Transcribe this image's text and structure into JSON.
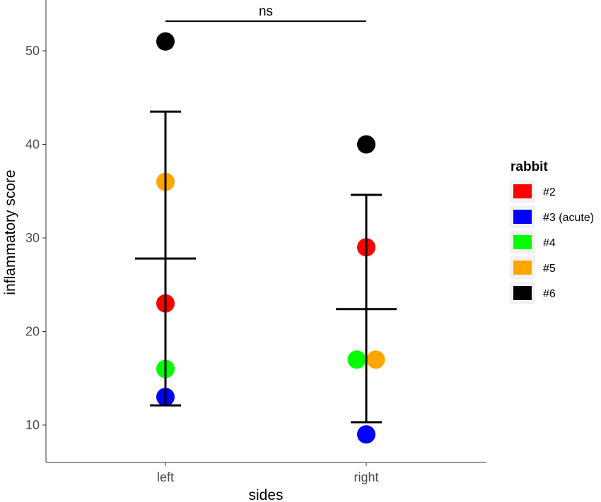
{
  "chart_data": {
    "type": "scatter",
    "xlabel": "sides",
    "ylabel": "inflammatory score",
    "categories": [
      "left",
      "right"
    ],
    "ylim": [
      7.5,
      53.5
    ],
    "yticks": [
      10,
      20,
      30,
      40,
      50
    ],
    "grid": false,
    "legend": {
      "title": "rabbit",
      "placement": "right",
      "entries": [
        {
          "label": "#2",
          "color": "#ff0000"
        },
        {
          "label": "#3 (acute)",
          "color": "#0000ff"
        },
        {
          "label": "#4",
          "color": "#00ff00"
        },
        {
          "label": "#5",
          "color": "#ffa500"
        },
        {
          "label": "#6",
          "color": "#000000"
        }
      ]
    },
    "points": [
      {
        "side": "left",
        "rabbit": "#6",
        "value": 51
      },
      {
        "side": "left",
        "rabbit": "#5",
        "value": 36
      },
      {
        "side": "left",
        "rabbit": "#2",
        "value": 23
      },
      {
        "side": "left",
        "rabbit": "#4",
        "value": 16
      },
      {
        "side": "left",
        "rabbit": "#3 (acute)",
        "value": 13
      },
      {
        "side": "right",
        "rabbit": "#6",
        "value": 40
      },
      {
        "side": "right",
        "rabbit": "#2",
        "value": 29
      },
      {
        "side": "right",
        "rabbit": "#4",
        "value": 17
      },
      {
        "side": "right",
        "rabbit": "#5",
        "value": 17
      },
      {
        "side": "right",
        "rabbit": "#3 (acute)",
        "value": 9
      }
    ],
    "summary": [
      {
        "side": "left",
        "mean": 27.8,
        "lower": 12.1,
        "upper": 43.5
      },
      {
        "side": "right",
        "mean": 22.4,
        "lower": 10.3,
        "upper": 34.6
      }
    ],
    "annotations": [
      {
        "text": "ns",
        "from": "left",
        "to": "right"
      }
    ]
  }
}
